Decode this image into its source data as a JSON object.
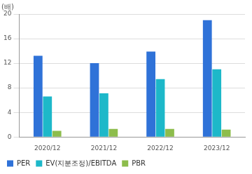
{
  "chart_data": {
    "type": "bar",
    "y_label": "(배)",
    "categories": [
      "2020/12",
      "2021/12",
      "2022/12",
      "2023/12"
    ],
    "series": [
      {
        "name": "PER",
        "color": "#2f72d8",
        "values": [
          13.2,
          12.0,
          13.9,
          19.0
        ]
      },
      {
        "name": "EV(지분조정)/EBITDA",
        "color": "#1db8c9",
        "values": [
          6.6,
          7.1,
          9.4,
          11.0
        ]
      },
      {
        "name": "PBR",
        "color": "#8dbd4c",
        "values": [
          1.0,
          1.3,
          1.3,
          1.2
        ]
      }
    ],
    "ylim": [
      0,
      20
    ],
    "yticks": [
      0,
      4,
      8,
      12,
      16,
      20
    ],
    "grid": true,
    "legend": "bottom"
  }
}
